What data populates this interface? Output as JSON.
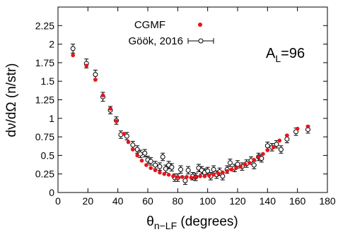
{
  "chart_data": {
    "type": "scatter",
    "title": "",
    "xlabel_main": "θ",
    "xlabel_sub": "n−LF",
    "xlabel_rest": " (degrees)",
    "ylabel": "dν/dΩ (n/str)",
    "annotation_main": "A",
    "annotation_sub": "L",
    "annotation_rest": "=96",
    "xlim": [
      0,
      180
    ],
    "ylim": [
      0,
      2.5
    ],
    "xticks": [
      0,
      20,
      40,
      60,
      80,
      100,
      120,
      140,
      160,
      180
    ],
    "yticks": [
      0,
      0.25,
      0.5,
      0.75,
      1,
      1.25,
      1.5,
      1.75,
      2,
      2.25
    ],
    "legend_position": "top-center",
    "series": [
      {
        "name": "CGMF",
        "marker": "filled-circle",
        "color": "#e8141c",
        "x": [
          10,
          19,
          25,
          30,
          35,
          39,
          44,
          47,
          50,
          53,
          56,
          59,
          62,
          65,
          68,
          71,
          74,
          77,
          80,
          83,
          86,
          89,
          92,
          95,
          98,
          101,
          104,
          107,
          110,
          113,
          116,
          119,
          122,
          125,
          128,
          131,
          134,
          137,
          140,
          144,
          148,
          153,
          160,
          167
        ],
        "y": [
          1.85,
          1.71,
          1.52,
          1.31,
          1.13,
          0.96,
          0.79,
          0.68,
          0.58,
          0.5,
          0.43,
          0.37,
          0.33,
          0.3,
          0.27,
          0.25,
          0.24,
          0.22,
          0.21,
          0.21,
          0.21,
          0.2,
          0.21,
          0.22,
          0.22,
          0.23,
          0.24,
          0.26,
          0.27,
          0.29,
          0.31,
          0.33,
          0.35,
          0.38,
          0.4,
          0.44,
          0.48,
          0.52,
          0.57,
          0.61,
          0.7,
          0.77,
          0.86,
          0.89
        ]
      },
      {
        "name": "Göök, 2016",
        "marker": "open-circle-errorbar",
        "color": "#000000",
        "x": [
          10,
          19,
          25,
          30,
          35,
          39,
          42,
          46,
          50,
          53,
          55,
          58,
          60,
          62,
          65,
          68,
          70,
          72,
          74,
          76,
          78,
          80,
          82,
          85,
          87,
          90,
          92,
          94,
          96,
          98,
          100,
          102,
          104,
          106,
          108,
          110,
          113,
          115,
          118,
          120,
          123,
          126,
          129,
          131,
          134,
          136,
          140,
          143,
          146,
          149,
          153,
          159,
          167
        ],
        "y": [
          1.94,
          1.74,
          1.59,
          1.29,
          1.11,
          0.97,
          0.78,
          0.76,
          0.64,
          0.58,
          0.52,
          0.53,
          0.44,
          0.42,
          0.37,
          0.35,
          0.48,
          0.32,
          0.37,
          0.34,
          0.2,
          0.2,
          0.31,
          0.16,
          0.3,
          0.22,
          0.21,
          0.33,
          0.3,
          0.27,
          0.29,
          0.22,
          0.31,
          0.24,
          0.28,
          0.22,
          0.31,
          0.4,
          0.33,
          0.38,
          0.35,
          0.39,
          0.43,
          0.37,
          0.48,
          0.46,
          0.63,
          0.61,
          0.65,
          0.58,
          0.72,
          0.82,
          0.85
        ],
        "err": [
          0.06,
          0.06,
          0.06,
          0.06,
          0.05,
          0.05,
          0.05,
          0.05,
          0.05,
          0.05,
          0.05,
          0.05,
          0.05,
          0.05,
          0.05,
          0.05,
          0.05,
          0.05,
          0.05,
          0.05,
          0.05,
          0.05,
          0.05,
          0.05,
          0.05,
          0.05,
          0.05,
          0.05,
          0.05,
          0.05,
          0.05,
          0.05,
          0.05,
          0.05,
          0.05,
          0.05,
          0.05,
          0.05,
          0.05,
          0.05,
          0.05,
          0.05,
          0.05,
          0.05,
          0.05,
          0.05,
          0.05,
          0.05,
          0.05,
          0.05,
          0.05,
          0.05,
          0.05
        ]
      }
    ]
  }
}
